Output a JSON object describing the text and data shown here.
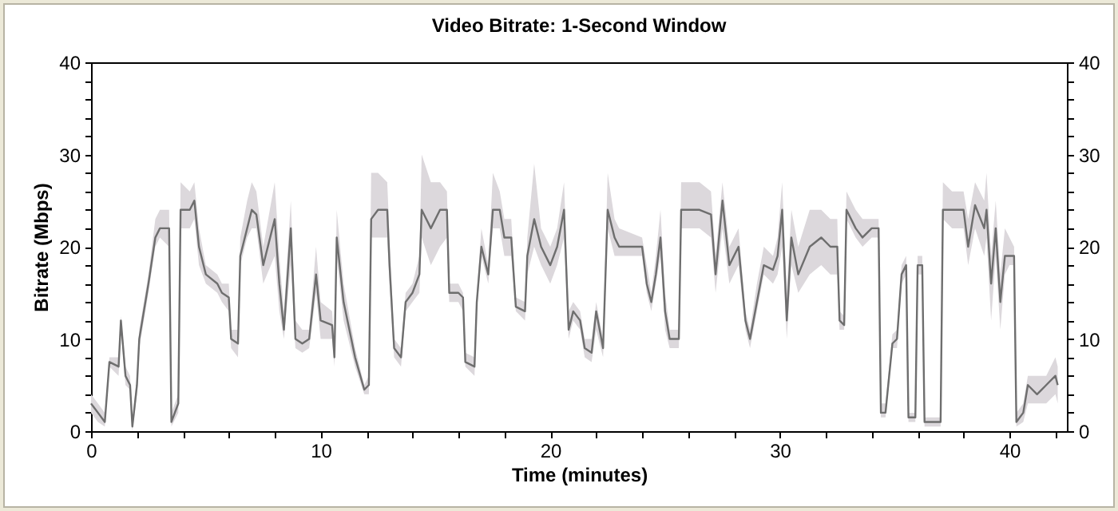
{
  "chart_data": {
    "type": "line",
    "title": "Video Bitrate: 1-Second Window",
    "xlabel": "Time (minutes)",
    "ylabel": "Bitrate (Mbps)",
    "xlim": [
      0,
      42.5
    ],
    "ylim": [
      0,
      40
    ],
    "y2lim": [
      0,
      40
    ],
    "xticks": [
      0,
      {
        "value": 2,
        "label": null
      },
      {
        "value": 4,
        "label": null
      },
      {
        "value": 6,
        "label": null
      },
      {
        "value": 8,
        "label": null
      },
      10,
      {
        "value": 12,
        "label": null
      },
      {
        "value": 14,
        "label": null
      },
      {
        "value": 16,
        "label": null
      },
      {
        "value": 18,
        "label": null
      },
      20,
      {
        "value": 22,
        "label": null
      },
      {
        "value": 24,
        "label": null
      },
      {
        "value": 26,
        "label": null
      },
      {
        "value": 28,
        "label": null
      },
      30,
      {
        "value": 32,
        "label": null
      },
      {
        "value": 34,
        "label": null
      },
      {
        "value": 36,
        "label": null
      },
      {
        "value": 38,
        "label": null
      },
      40,
      {
        "value": 42,
        "label": null
      }
    ],
    "yticks": [
      0,
      {
        "value": 2,
        "label": null
      },
      {
        "value": 4,
        "label": null
      },
      {
        "value": 6,
        "label": null
      },
      {
        "value": 8,
        "label": null
      },
      10,
      {
        "value": 12,
        "label": null
      },
      {
        "value": 14,
        "label": null
      },
      {
        "value": 16,
        "label": null
      },
      {
        "value": 18,
        "label": null
      },
      20,
      {
        "value": 22,
        "label": null
      },
      {
        "value": 24,
        "label": null
      },
      {
        "value": 26,
        "label": null
      },
      {
        "value": 28,
        "label": null
      },
      30,
      {
        "value": 32,
        "label": null
      },
      {
        "value": 34,
        "label": null
      },
      {
        "value": 36,
        "label": null
      },
      {
        "value": 38,
        "label": null
      },
      40
    ],
    "y2ticks": [
      0,
      {
        "value": 2,
        "label": null
      },
      {
        "value": 4,
        "label": null
      },
      {
        "value": 6,
        "label": null
      },
      {
        "value": 8,
        "label": null
      },
      10,
      {
        "value": 12,
        "label": null
      },
      {
        "value": 14,
        "label": null
      },
      {
        "value": 16,
        "label": null
      },
      {
        "value": 18,
        "label": null
      },
      20,
      {
        "value": 22,
        "label": null
      },
      {
        "value": 24,
        "label": null
      },
      {
        "value": 26,
        "label": null
      },
      {
        "value": 28,
        "label": null
      },
      30,
      {
        "value": 32,
        "label": null
      },
      {
        "value": 34,
        "label": null
      },
      {
        "value": 36,
        "label": null
      },
      {
        "value": 38,
        "label": null
      },
      40
    ],
    "x": [
      0,
      0.3,
      0.6,
      0.8,
      1.2,
      1.3,
      1.5,
      1.7,
      1.8,
      2.0,
      2.1,
      2.5,
      2.8,
      3.0,
      3.4,
      3.5,
      3.8,
      3.9,
      4.3,
      4.5,
      4.7,
      5.0,
      5.5,
      5.7,
      6.0,
      6.1,
      6.4,
      6.5,
      6.8,
      7.0,
      7.2,
      7.5,
      8.0,
      8.2,
      8.4,
      8.7,
      8.9,
      9.2,
      9.5,
      9.8,
      10.0,
      10.5,
      10.6,
      10.7,
      11.0,
      11.5,
      11.9,
      12.1,
      12.2,
      12.5,
      12.9,
      13.0,
      13.2,
      13.5,
      13.7,
      14.0,
      14.3,
      14.4,
      14.8,
      15.2,
      15.5,
      15.6,
      16.0,
      16.2,
      16.3,
      16.7,
      16.8,
      17.0,
      17.3,
      17.5,
      17.8,
      18.0,
      18.3,
      18.5,
      18.9,
      19.0,
      19.3,
      19.6,
      20.0,
      20.3,
      20.6,
      20.8,
      21.0,
      21.3,
      21.5,
      21.8,
      22.0,
      22.3,
      22.5,
      22.8,
      23.0,
      24.0,
      24.2,
      24.4,
      24.6,
      24.8,
      25.0,
      25.2,
      25.6,
      25.7,
      26.5,
      27.0,
      27.2,
      27.5,
      27.8,
      28.2,
      28.5,
      28.7,
      29.0,
      29.3,
      29.7,
      29.9,
      30.1,
      30.3,
      30.5,
      30.8,
      31.3,
      31.8,
      32.2,
      32.5,
      32.6,
      32.8,
      32.9,
      33.3,
      33.6,
      34.0,
      34.3,
      34.4,
      34.6,
      34.9,
      35.1,
      35.3,
      35.5,
      35.6,
      35.9,
      36.0,
      36.2,
      36.3,
      37.0,
      37.1,
      37.5,
      38.0,
      38.2,
      38.5,
      38.9,
      39.0,
      39.2,
      39.4,
      39.6,
      39.8,
      40.0,
      40.2,
      40.3,
      40.6,
      40.8,
      41.2,
      41.6,
      42.0,
      42.1
    ],
    "series": [
      {
        "color": "#6e6e6e",
        "values": [
          3,
          2,
          1,
          7.5,
          7,
          12,
          6,
          5,
          0.5,
          5,
          10,
          16,
          21,
          22,
          22,
          1,
          3,
          24,
          24,
          25,
          20,
          17,
          16,
          15,
          14.5,
          10,
          9.5,
          19,
          22,
          24,
          23.5,
          18,
          23,
          16,
          11,
          22,
          10,
          9.5,
          10,
          17,
          12,
          11.5,
          8,
          21,
          14,
          8,
          4.5,
          5,
          23,
          24,
          24,
          18,
          9,
          8,
          14,
          15,
          17,
          24,
          22,
          24,
          24,
          15,
          15,
          14.5,
          7.5,
          7,
          14,
          20,
          17,
          24,
          24,
          21,
          21,
          13.5,
          13,
          19,
          23,
          20,
          18,
          20,
          24,
          11,
          13,
          12,
          9,
          8.5,
          13,
          9,
          24,
          21,
          20,
          20,
          16,
          14,
          17,
          21,
          13,
          10,
          10,
          24,
          24,
          23.5,
          17,
          25,
          18,
          20,
          12,
          10,
          14,
          18,
          17.5,
          19,
          24,
          12,
          21,
          17,
          20,
          21,
          20,
          20,
          12,
          11.5,
          24,
          22,
          21,
          22,
          22,
          2,
          2,
          9.5,
          10,
          17,
          18,
          1.5,
          1.5,
          18,
          18,
          1,
          1,
          24,
          24,
          24,
          20,
          24.5,
          22,
          24,
          16,
          22,
          14,
          19,
          19,
          19,
          1,
          2,
          5,
          4,
          5,
          6,
          5
        ],
        "lower": [
          2,
          1,
          0.5,
          7,
          6,
          11,
          5,
          4.5,
          0,
          4,
          9,
          15,
          20,
          21,
          20,
          0.5,
          2,
          22,
          22,
          23,
          18,
          16,
          15,
          14,
          13,
          9,
          8,
          18,
          21,
          22,
          22,
          16,
          19,
          13,
          10,
          18,
          9,
          8.5,
          9,
          15,
          10,
          10,
          7,
          19,
          12,
          7,
          4,
          4,
          21,
          21,
          21,
          16,
          8,
          7,
          13,
          14,
          15,
          21,
          18,
          20,
          21,
          14,
          14,
          13,
          7,
          6,
          13,
          19,
          16,
          22,
          22,
          19,
          19,
          13,
          12,
          17,
          20,
          18,
          16,
          18,
          21,
          10,
          12,
          11,
          8,
          7.5,
          11,
          8,
          22,
          19,
          19,
          19,
          15,
          13,
          16,
          19,
          11,
          9,
          9,
          22,
          22,
          21,
          15,
          22,
          16,
          18,
          11,
          9,
          13,
          17,
          16,
          17,
          20,
          10,
          18,
          15,
          17,
          18,
          17,
          17,
          11,
          11,
          23,
          21,
          20,
          21,
          21,
          1.5,
          1.5,
          9,
          9,
          16,
          17,
          1,
          1,
          17,
          17,
          0.5,
          0.5,
          23,
          22,
          22,
          18,
          22,
          19,
          21,
          12,
          19,
          11,
          17,
          18,
          18,
          0.5,
          1,
          3,
          3,
          3,
          4,
          3
        ],
        "upper": [
          4,
          3,
          2,
          8,
          8,
          12.5,
          7,
          6,
          1,
          6,
          11,
          17,
          23,
          24,
          24,
          2,
          4,
          27,
          26,
          27,
          22,
          18,
          17,
          16,
          16,
          11,
          11,
          21,
          25,
          27,
          26,
          20,
          27,
          19,
          13,
          25,
          12,
          11,
          11,
          20,
          14,
          13,
          9,
          24,
          16,
          9,
          5,
          6,
          28,
          28,
          27,
          21,
          10,
          9,
          15,
          16,
          19,
          30,
          27,
          27,
          26,
          16,
          16,
          15,
          8.5,
          8,
          15,
          22,
          18,
          28,
          26,
          23,
          23,
          14.5,
          14,
          21,
          29,
          22,
          20,
          22,
          27,
          13,
          14,
          13,
          10,
          10,
          14,
          10,
          28,
          23,
          22,
          21,
          18,
          15,
          19,
          24,
          15,
          11,
          11,
          27,
          27,
          26,
          19,
          27,
          20,
          22,
          13,
          11,
          16,
          20,
          19,
          21,
          27,
          15,
          24,
          20,
          24,
          24,
          23,
          23,
          13,
          12.5,
          26,
          24,
          23,
          23,
          23,
          3,
          3,
          10.5,
          11,
          18,
          19,
          2,
          2,
          19,
          19,
          1.5,
          1.5,
          27,
          26,
          26,
          23,
          27,
          25,
          28,
          19,
          25,
          17,
          22,
          21,
          20,
          2,
          3,
          6,
          6,
          6,
          8,
          7
        ]
      }
    ]
  }
}
